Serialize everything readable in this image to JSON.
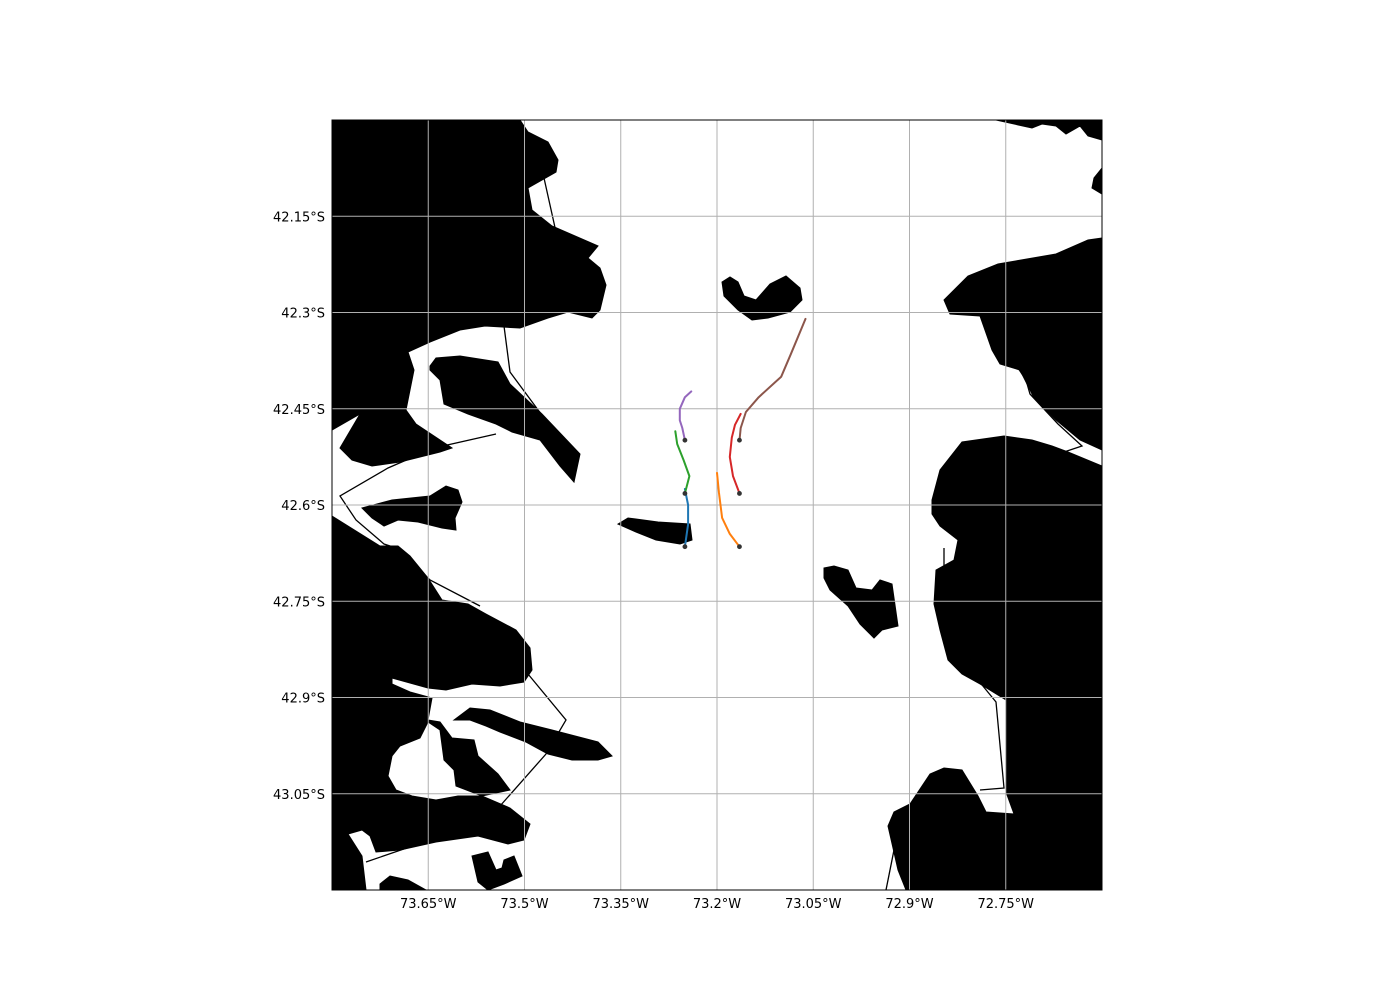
{
  "map": {
    "lon_range": [
      -73.8,
      -72.6
    ],
    "lat_range": [
      -42.0,
      -43.2
    ],
    "grid": true,
    "land_color": "#000000",
    "water_color": "#ffffff",
    "x_ticks": [
      {
        "value": -73.65,
        "label": "73.65°W"
      },
      {
        "value": -73.5,
        "label": "73.5°W"
      },
      {
        "value": -73.35,
        "label": "73.35°W"
      },
      {
        "value": -73.2,
        "label": "73.2°W"
      },
      {
        "value": -73.05,
        "label": "73.05°W"
      },
      {
        "value": -72.9,
        "label": "72.9°W"
      },
      {
        "value": -72.75,
        "label": "72.75°W"
      }
    ],
    "y_ticks": [
      {
        "value": -42.15,
        "label": "42.15°S"
      },
      {
        "value": -42.3,
        "label": "42.3°S"
      },
      {
        "value": -42.45,
        "label": "42.45°S"
      },
      {
        "value": -42.6,
        "label": "42.6°S"
      },
      {
        "value": -42.75,
        "label": "42.75°S"
      },
      {
        "value": -42.9,
        "label": "42.9°S"
      },
      {
        "value": -43.05,
        "label": "43.05°S"
      }
    ]
  },
  "tracks": [
    {
      "color": "#1f77b4",
      "points": [
        [
          -73.25,
          -42.665
        ],
        [
          -73.245,
          -42.63
        ],
        [
          -73.245,
          -42.6
        ],
        [
          -73.25,
          -42.575
        ]
      ]
    },
    {
      "color": "#ff7f0e",
      "points": [
        [
          -73.165,
          -42.665
        ],
        [
          -73.18,
          -42.645
        ],
        [
          -73.192,
          -42.62
        ],
        [
          -73.197,
          -42.58
        ],
        [
          -73.2,
          -42.55
        ]
      ]
    },
    {
      "color": "#2ca02c",
      "points": [
        [
          -73.25,
          -42.582
        ],
        [
          -73.243,
          -42.555
        ],
        [
          -73.252,
          -42.53
        ],
        [
          -73.262,
          -42.505
        ],
        [
          -73.265,
          -42.485
        ]
      ]
    },
    {
      "color": "#d62728",
      "points": [
        [
          -73.165,
          -42.582
        ],
        [
          -73.175,
          -42.555
        ],
        [
          -73.18,
          -42.525
        ],
        [
          -73.177,
          -42.495
        ],
        [
          -73.172,
          -42.475
        ],
        [
          -73.163,
          -42.458
        ]
      ]
    },
    {
      "color": "#9467bd",
      "points": [
        [
          -73.25,
          -42.499
        ],
        [
          -73.254,
          -42.48
        ],
        [
          -73.258,
          -42.468
        ],
        [
          -73.258,
          -42.45
        ],
        [
          -73.25,
          -42.432
        ],
        [
          -73.24,
          -42.423
        ]
      ]
    },
    {
      "color": "#8c564b",
      "points": [
        [
          -73.165,
          -42.499
        ],
        [
          -73.163,
          -42.48
        ],
        [
          -73.155,
          -42.455
        ],
        [
          -73.135,
          -42.432
        ],
        [
          -73.1,
          -42.4
        ],
        [
          -73.085,
          -42.365
        ],
        [
          -73.062,
          -42.31
        ]
      ]
    }
  ]
}
